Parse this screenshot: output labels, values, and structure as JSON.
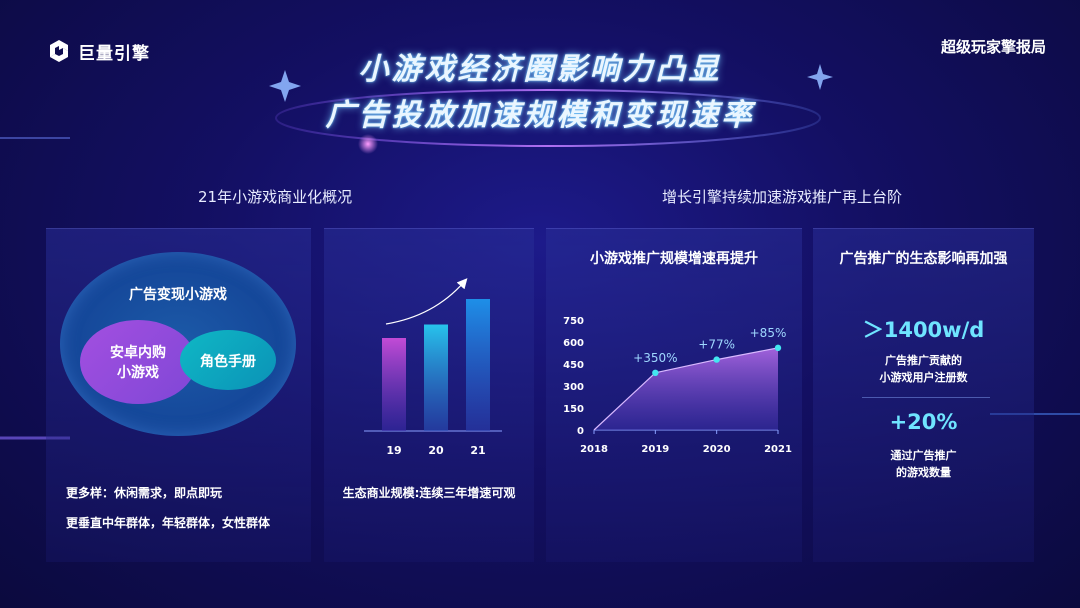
{
  "header": {
    "logo_text": "巨量引擎",
    "brand_right": "超级玩家擎报局",
    "title_line1": "小游戏经济圈影响力凸显",
    "title_line2": "广告投放加速规模和变现速率"
  },
  "left_section": {
    "subtitle": "21年小游戏商业化概况",
    "venn": {
      "outer_label": "广告变现小游戏",
      "purple_label_line1": "安卓内购",
      "purple_label_line2": "小游戏",
      "teal_label": "角色手册"
    },
    "notes": [
      "更多样：休闲需求，即点即玩",
      "更垂直中年群体，年轻群体，女性群体"
    ],
    "bar_caption": "生态商业规模:连续三年增速可观"
  },
  "right_section": {
    "subtitle": "增长引擎持续加速游戏推广再上台阶",
    "area_title": "小游戏推广规模增速再提升",
    "eco_title": "广告推广的生态影响再加强",
    "stat1_value": "＞1400w/d",
    "stat1_desc_line1": "广告推广贡献的",
    "stat1_desc_line2": "小游戏用户注册数",
    "stat2_value": "+20%",
    "stat2_desc_line1": "通过广告推广",
    "stat2_desc_line2": "的游戏数量"
  },
  "chart_data": [
    {
      "type": "bar",
      "title": "",
      "categories": [
        "19",
        "20",
        "21"
      ],
      "values": [
        0.62,
        0.71,
        0.88
      ],
      "ylim": [
        0,
        1
      ],
      "grid": false,
      "colors": [
        "#c24bd6",
        "#27c3ec",
        "#1e8fe8"
      ]
    },
    {
      "type": "area",
      "title": "小游戏推广规模增速再提升",
      "x": [
        "2018",
        "2019",
        "2020",
        "2021"
      ],
      "y": [
        0,
        390,
        480,
        560
      ],
      "yticks": [
        0,
        150,
        300,
        450,
        600,
        750
      ],
      "ylim": [
        0,
        750
      ],
      "annotations": [
        "",
        "+350%",
        "+77%",
        "+85%"
      ],
      "grid": false,
      "colors": {
        "fill_top": "#a865e0",
        "line": "#ffffff",
        "marker": "#43e6f0"
      }
    }
  ]
}
